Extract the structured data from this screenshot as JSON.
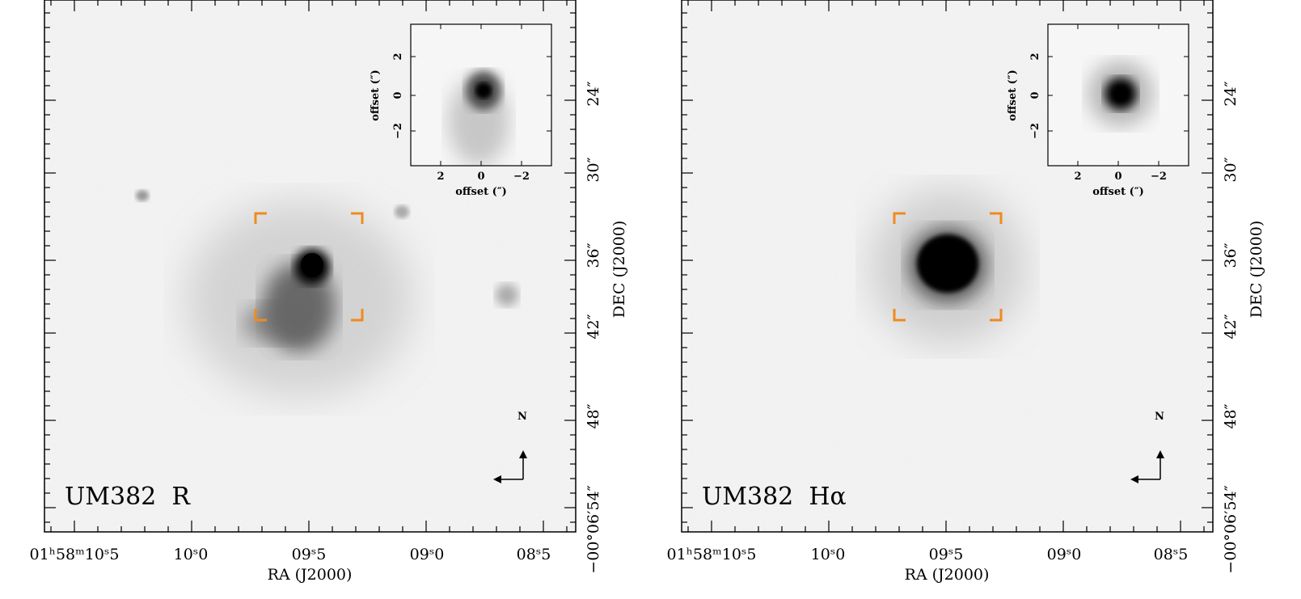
{
  "panels": [
    {
      "id": "R",
      "label": "UM382  R",
      "x_tick_labels": [
        "01ʰ58ᵐ10ˢ5",
        "10ˢ0",
        "09ˢ5",
        "09ˢ0",
        "08ˢ5"
      ],
      "x_axis_title": "RA (J2000)",
      "y_tick_labels": [
        "24″",
        "30″",
        "36″",
        "42″",
        "48″",
        "−00°06′54″"
      ],
      "y_axis_title": "DEC (J2000)",
      "inset": {
        "x_axis_title": "offset (″)",
        "y_axis_title": "offset (″)",
        "x_tick_labels": [
          "2",
          "0",
          "−2"
        ],
        "y_tick_labels": [
          "2",
          "0",
          "−2"
        ]
      },
      "compass_label": "N"
    },
    {
      "id": "Ha",
      "label": "UM382  Hα",
      "x_tick_labels": [
        "01ʰ58ᵐ10ˢ5",
        "10ˢ0",
        "09ˢ5",
        "09ˢ0",
        "08ˢ5"
      ],
      "x_axis_title": "RA (J2000)",
      "y_tick_labels": [
        "24″",
        "30″",
        "36″",
        "42″",
        "48″",
        "−00°06′54″"
      ],
      "y_axis_title": "DEC (J2000)",
      "inset": {
        "x_axis_title": "offset (″)",
        "y_axis_title": "offset (″)",
        "x_tick_labels": [
          "2",
          "0",
          "−2"
        ],
        "y_tick_labels": [
          "2",
          "0",
          "−2"
        ]
      },
      "compass_label": "N"
    }
  ],
  "colors": {
    "bracket": "#f08a1e",
    "ink": "#000000",
    "sky": "#e6e6e6"
  }
}
